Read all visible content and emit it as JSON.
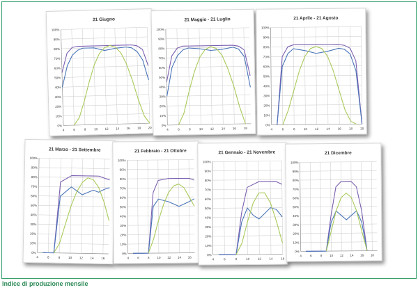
{
  "caption": "Indice di produzione mensile",
  "colors": {
    "purple": "#7b5fb0",
    "blue": "#4a74b8",
    "green": "#a9c95a",
    "grid": "#c9c9c9",
    "text": "#333333"
  },
  "chart_data": [
    {
      "type": "line",
      "title": "21 Giugno",
      "y_ticks": [
        "0%",
        "10%",
        "20%",
        "30%",
        "40%",
        "50%",
        "60%",
        "70%",
        "80%",
        "90%",
        "100%"
      ],
      "x_ticks": [
        "4",
        "6",
        "8",
        "10",
        "12",
        "14",
        "16",
        "18",
        "20"
      ],
      "ylim": [
        0,
        100
      ],
      "xlim": [
        4,
        20
      ],
      "series": [
        {
          "color": "purple",
          "x": [
            4,
            5,
            6,
            7,
            8,
            10,
            12,
            14,
            16,
            17,
            18,
            19,
            20
          ],
          "values": [
            55,
            75,
            81,
            82,
            82,
            82,
            82,
            82,
            82,
            82,
            81,
            77,
            60
          ]
        },
        {
          "color": "blue",
          "x": [
            4,
            5,
            6,
            7,
            8,
            10,
            12,
            14,
            16,
            17,
            18,
            19,
            20
          ],
          "values": [
            40,
            62,
            73,
            78,
            80,
            80,
            77,
            79,
            80,
            79,
            75,
            66,
            45
          ]
        },
        {
          "color": "green",
          "x": [
            6,
            7,
            8,
            9,
            10,
            11,
            12,
            13,
            14,
            15,
            16,
            17,
            18,
            19,
            20
          ],
          "values": [
            0,
            8,
            25,
            45,
            62,
            74,
            80,
            82,
            80,
            74,
            62,
            45,
            25,
            8,
            0
          ]
        }
      ]
    },
    {
      "type": "line",
      "title": "21 Maggio - 21 Luglio",
      "y_ticks": [
        "0%",
        "10%",
        "20%",
        "30%",
        "40%",
        "50%",
        "60%",
        "70%",
        "80%",
        "90%",
        "100%"
      ],
      "x_ticks": [
        "4",
        "6",
        "8",
        "10",
        "12",
        "14",
        "16",
        "18"
      ],
      "ylim": [
        0,
        100
      ],
      "xlim": [
        4,
        19
      ],
      "series": [
        {
          "color": "purple",
          "x": [
            4,
            5,
            6,
            7,
            8,
            10,
            12,
            14,
            16,
            17,
            18,
            19
          ],
          "values": [
            45,
            72,
            80,
            82,
            82,
            82,
            82,
            82,
            82,
            81,
            77,
            50
          ]
        },
        {
          "color": "blue",
          "x": [
            4,
            5,
            6,
            7,
            8,
            10,
            12,
            14,
            16,
            17,
            18,
            19
          ],
          "values": [
            30,
            60,
            72,
            78,
            80,
            79,
            77,
            78,
            80,
            78,
            70,
            38
          ]
        },
        {
          "color": "green",
          "x": [
            6,
            7,
            8,
            9,
            10,
            11,
            12,
            13,
            14,
            15,
            16,
            17,
            18
          ],
          "values": [
            0,
            12,
            35,
            55,
            70,
            78,
            81,
            79,
            72,
            58,
            40,
            18,
            0
          ]
        }
      ]
    },
    {
      "type": "line",
      "title": "21 Aprile - 21 Agosto",
      "y_ticks": [
        "0%",
        "10%",
        "20%",
        "30%",
        "40%",
        "50%",
        "60%",
        "70%",
        "80%",
        "90%",
        "100%"
      ],
      "x_ticks": [
        "4",
        "6",
        "8",
        "10",
        "12",
        "14",
        "16",
        "18",
        "20"
      ],
      "ylim": [
        0,
        100
      ],
      "xlim": [
        4,
        20
      ],
      "series": [
        {
          "color": "purple",
          "x": [
            5,
            6,
            7,
            8,
            10,
            12,
            14,
            16,
            17,
            18,
            19,
            20
          ],
          "values": [
            0,
            70,
            80,
            82,
            82,
            82,
            82,
            82,
            81,
            78,
            65,
            0
          ]
        },
        {
          "color": "blue",
          "x": [
            5,
            6,
            7,
            8,
            10,
            12,
            14,
            16,
            17,
            18,
            19,
            20
          ],
          "values": [
            0,
            60,
            73,
            78,
            76,
            73,
            75,
            78,
            77,
            72,
            55,
            0
          ]
        },
        {
          "color": "green",
          "x": [
            6,
            7,
            8,
            9,
            10,
            11,
            12,
            13,
            14,
            15,
            16,
            17,
            18,
            19
          ],
          "values": [
            0,
            15,
            35,
            55,
            70,
            78,
            80,
            78,
            70,
            55,
            35,
            15,
            3,
            0
          ]
        }
      ]
    },
    {
      "type": "line",
      "title": "21 Marzo - 21 Settembre",
      "y_ticks": [
        "0%",
        "10%",
        "20%",
        "30%",
        "40%",
        "50%",
        "60%",
        "70%",
        "80%",
        "90%",
        "100%"
      ],
      "x_ticks": [
        "4",
        "6",
        "8",
        "10",
        "12",
        "14",
        "16"
      ],
      "ylim": [
        0,
        100
      ],
      "xlim": [
        4,
        17
      ],
      "series": [
        {
          "color": "purple",
          "x": [
            5,
            6,
            7,
            8,
            10,
            12,
            14,
            15,
            16,
            17
          ],
          "values": [
            0,
            0,
            0,
            75,
            82,
            82,
            82,
            82,
            80,
            78
          ]
        },
        {
          "color": "blue",
          "x": [
            5,
            6,
            7,
            8,
            10,
            12,
            14,
            15,
            16,
            17
          ],
          "values": [
            0,
            0,
            0,
            60,
            70,
            62,
            67,
            65,
            68,
            70
          ]
        },
        {
          "color": "green",
          "x": [
            7,
            8,
            9,
            10,
            11,
            12,
            13,
            14,
            15,
            16,
            17
          ],
          "values": [
            0,
            10,
            30,
            50,
            65,
            75,
            80,
            78,
            70,
            55,
            35
          ]
        }
      ]
    },
    {
      "type": "line",
      "title": "21 Febbraio - 21 Ottobre",
      "y_ticks": [
        "0%",
        "10%",
        "20%",
        "30%",
        "40%",
        "50%",
        "60%",
        "70%",
        "80%",
        "90%",
        "100%"
      ],
      "x_ticks": [
        "4",
        "6",
        "8",
        "10",
        "12",
        "14",
        "16"
      ],
      "ylim": [
        0,
        100
      ],
      "xlim": [
        4,
        17
      ],
      "series": [
        {
          "color": "purple",
          "x": [
            5,
            6,
            7,
            8,
            9,
            10,
            12,
            14,
            16,
            17
          ],
          "values": [
            0,
            0,
            0,
            0,
            65,
            78,
            80,
            80,
            80,
            78
          ]
        },
        {
          "color": "blue",
          "x": [
            5,
            6,
            7,
            8,
            9,
            10,
            12,
            14,
            16,
            17
          ],
          "values": [
            0,
            0,
            0,
            0,
            50,
            58,
            55,
            50,
            55,
            58
          ]
        },
        {
          "color": "green",
          "x": [
            8,
            9,
            10,
            11,
            12,
            13,
            14,
            15,
            16,
            17
          ],
          "values": [
            0,
            15,
            35,
            52,
            65,
            72,
            74,
            70,
            60,
            50
          ]
        }
      ]
    },
    {
      "type": "line",
      "title": "21 Gennaio - 21 Novembre",
      "y_ticks": [
        "0%",
        "10%",
        "20%",
        "30%",
        "40%",
        "50%",
        "60%",
        "70%",
        "80%",
        "90%",
        "100%"
      ],
      "x_ticks": [
        "4",
        "6",
        "8",
        "10",
        "12",
        "14",
        "16"
      ],
      "ylim": [
        0,
        100
      ],
      "xlim": [
        4,
        16
      ],
      "series": [
        {
          "color": "purple",
          "x": [
            5,
            6,
            7,
            8,
            9,
            10,
            12,
            14,
            15,
            16
          ],
          "values": [
            0,
            0,
            0,
            0,
            45,
            72,
            78,
            78,
            78,
            75
          ]
        },
        {
          "color": "blue",
          "x": [
            5,
            6,
            7,
            8,
            9,
            10,
            11,
            12,
            13,
            14,
            15,
            16
          ],
          "values": [
            0,
            0,
            0,
            0,
            35,
            50,
            42,
            38,
            44,
            50,
            48,
            40
          ]
        },
        {
          "color": "green",
          "x": [
            8,
            9,
            10,
            11,
            12,
            13,
            14,
            15,
            16
          ],
          "values": [
            0,
            12,
            35,
            55,
            66,
            66,
            55,
            35,
            12
          ]
        }
      ]
    },
    {
      "type": "line",
      "title": "21 Dicembre",
      "y_ticks": [
        "0%",
        "10%",
        "20%",
        "30%",
        "40%",
        "50%",
        "60%",
        "70%",
        "80%",
        "90%",
        "100%"
      ],
      "x_ticks": [
        "4",
        "6",
        "8",
        "10",
        "12",
        "14",
        "16",
        "18"
      ],
      "ylim": [
        0,
        100
      ],
      "xlim": [
        4,
        19
      ],
      "series": [
        {
          "color": "purple",
          "x": [
            5,
            6,
            7,
            8,
            9,
            10,
            11,
            12,
            14,
            15,
            16,
            17
          ],
          "values": [
            0,
            0,
            0,
            0,
            0,
            40,
            72,
            78,
            78,
            72,
            45,
            0
          ]
        },
        {
          "color": "blue",
          "x": [
            5,
            6,
            7,
            8,
            9,
            10,
            11,
            12,
            13,
            14,
            15,
            16,
            17
          ],
          "values": [
            0,
            0,
            0,
            0,
            0,
            32,
            45,
            40,
            35,
            40,
            45,
            32,
            0
          ]
        },
        {
          "color": "green",
          "x": [
            9,
            10,
            11,
            12,
            13,
            14,
            15,
            16,
            17
          ],
          "values": [
            0,
            22,
            45,
            60,
            65,
            60,
            45,
            22,
            0
          ]
        }
      ]
    }
  ]
}
